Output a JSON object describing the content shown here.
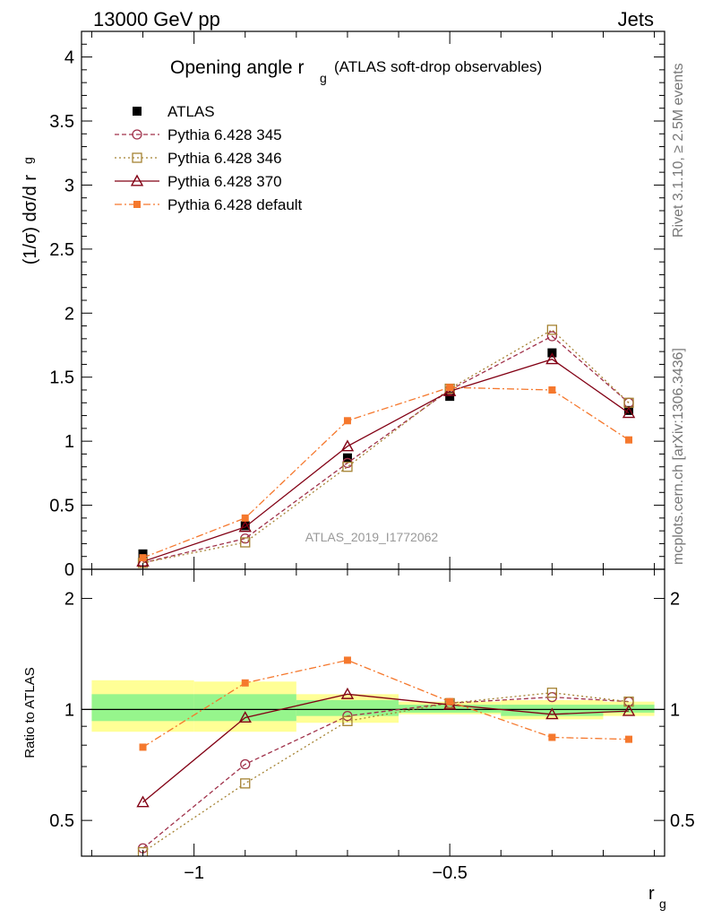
{
  "header": {
    "left": "13000 GeV pp",
    "right": "Jets"
  },
  "side_labels": {
    "rivet": "Rivet 3.1.10, ≥ 2.5M events",
    "mcplots": "mcplots.cern.ch [arXiv:1306.3436]"
  },
  "main_title": "Opening angle r",
  "main_title_sub": "g",
  "main_title_suffix": "(ATLAS soft-drop observables)",
  "watermark": "ATLAS_2019_I1772062",
  "colors": {
    "atlas": "#000000",
    "p345": "#a0324b",
    "p346": "#a58232",
    "p370": "#820014",
    "pdef": "#f5782d",
    "band_inner": "#96f58c",
    "band_outer": "#ffff96"
  },
  "chart_data": [
    {
      "type": "line",
      "panel": "main",
      "ylabel": "(1/σ) dσ/d r",
      "ylabel_sub": "g",
      "ylim": [
        0,
        4.2
      ],
      "xlim": [
        -1.22,
        -0.08
      ],
      "yticks": [
        0,
        0.5,
        1,
        1.5,
        2,
        2.5,
        3,
        3.5,
        4
      ],
      "ytick_labels": [
        "0",
        "0.5",
        "1",
        "1.5",
        "2",
        "2.5",
        "3",
        "3.5",
        "4"
      ],
      "x": [
        -1.1,
        -0.9,
        -0.7,
        -0.5,
        -0.3,
        -0.15
      ],
      "series": [
        {
          "name": "ATLAS",
          "key": "atlas",
          "values": [
            0.12,
            0.34,
            0.87,
            1.35,
            1.69,
            1.24
          ]
        },
        {
          "name": "Pythia 6.428 345",
          "key": "p345",
          "values": [
            0.05,
            0.24,
            0.83,
            1.4,
            1.82,
            1.3
          ]
        },
        {
          "name": "Pythia 6.428 346",
          "key": "p346",
          "values": [
            0.05,
            0.21,
            0.8,
            1.41,
            1.87,
            1.3
          ]
        },
        {
          "name": "Pythia 6.428 370",
          "key": "p370",
          "values": [
            0.06,
            0.33,
            0.96,
            1.39,
            1.64,
            1.22
          ]
        },
        {
          "name": "Pythia 6.428 default",
          "key": "pdef",
          "values": [
            0.09,
            0.4,
            1.16,
            1.42,
            1.4,
            1.01
          ]
        }
      ]
    },
    {
      "type": "line",
      "panel": "ratio",
      "ylabel": "Ratio to ATLAS",
      "xlabel": "r",
      "xlabel_sub": "g",
      "ylim": [
        0.4,
        2.4
      ],
      "log_y": true,
      "xlim": [
        -1.22,
        -0.08
      ],
      "yticks": [
        0.5,
        1,
        2
      ],
      "ytick_labels": [
        "0.5",
        "1",
        "2"
      ],
      "xticks": [
        -1,
        -0.5
      ],
      "xtick_labels": [
        "−1",
        "−0.5"
      ],
      "x": [
        -1.1,
        -0.9,
        -0.7,
        -0.5,
        -0.3,
        -0.15
      ],
      "bin_edges": [
        -1.2,
        -1.0,
        -0.8,
        -0.6,
        -0.4,
        -0.2,
        -0.1
      ],
      "band_inner": [
        [
          0.93,
          1.1
        ],
        [
          0.93,
          1.1
        ],
        [
          0.96,
          1.06
        ],
        [
          0.98,
          1.03
        ],
        [
          0.96,
          1.03
        ],
        [
          0.98,
          1.03
        ]
      ],
      "band_outer": [
        [
          0.87,
          1.2
        ],
        [
          0.87,
          1.19
        ],
        [
          0.92,
          1.1
        ],
        [
          0.97,
          1.05
        ],
        [
          0.94,
          1.06
        ],
        [
          0.96,
          1.05
        ]
      ],
      "series": [
        {
          "name": "Pythia 6.428 345",
          "key": "p345",
          "values": [
            0.42,
            0.71,
            0.96,
            1.04,
            1.08,
            1.05
          ]
        },
        {
          "name": "Pythia 6.428 346",
          "key": "p346",
          "values": [
            0.41,
            0.63,
            0.93,
            1.04,
            1.11,
            1.05
          ]
        },
        {
          "name": "Pythia 6.428 370",
          "key": "p370",
          "values": [
            0.56,
            0.95,
            1.1,
            1.03,
            0.97,
            0.99
          ]
        },
        {
          "name": "Pythia 6.428 default",
          "key": "pdef",
          "values": [
            0.79,
            1.18,
            1.36,
            1.05,
            0.84,
            0.83
          ]
        }
      ]
    }
  ]
}
